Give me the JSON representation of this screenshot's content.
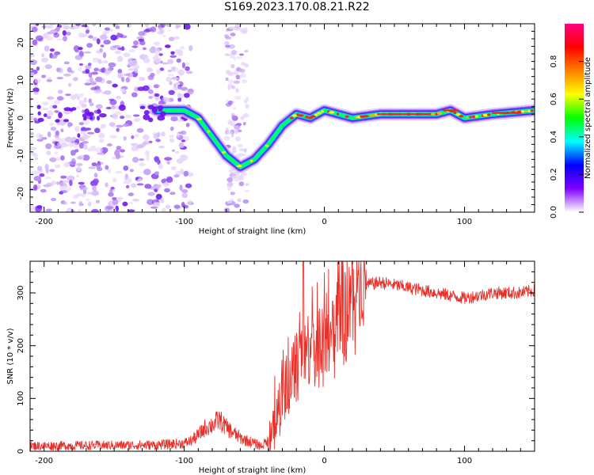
{
  "figure_title": "S169.2023.170.08.21.R22",
  "chart_data": [
    {
      "type": "heatmap",
      "title": "",
      "xlabel": "Height of straight line (km)",
      "ylabel": "Frequency (Hz)",
      "xlim": [
        -210,
        150
      ],
      "ylim": [
        -25,
        25
      ],
      "xticks": [
        -200,
        -100,
        0,
        100
      ],
      "yticks": [
        -20,
        -10,
        0,
        10,
        20
      ],
      "colorbar": {
        "label": "Normalized spectral amplitude",
        "range": [
          0,
          1
        ],
        "ticks": [
          "0.0",
          "0.2",
          "0.4",
          "0.6",
          "0.8"
        ],
        "colors": [
          "#ffffff",
          "#8000ff",
          "#0000ff",
          "#00ffff",
          "#00ff00",
          "#ffff00",
          "#ff8000",
          "#ff0000",
          "#ff0080"
        ]
      },
      "ridge": {
        "x": [
          -120,
          -110,
          -100,
          -90,
          -80,
          -70,
          -60,
          -50,
          -40,
          -30,
          -20,
          -10,
          0,
          10,
          20,
          40,
          60,
          80,
          90,
          100,
          120,
          150
        ],
        "y": [
          2,
          2,
          2,
          0,
          -5,
          -10,
          -13,
          -11,
          -7,
          -2,
          1,
          0,
          2,
          1,
          0,
          1,
          1,
          1,
          2,
          0,
          1,
          2
        ]
      },
      "noise_region_x": [
        -210,
        -105
      ],
      "secondary_noise_x": [
        -70,
        -55
      ]
    },
    {
      "type": "line",
      "title": "",
      "xlabel": "Height of straight line (km)",
      "ylabel": "SNR (10 * v/v)",
      "xlim": [
        -210,
        150
      ],
      "ylim": [
        0,
        360
      ],
      "xticks": [
        -200,
        -100,
        0,
        100
      ],
      "yticks": [
        0,
        100,
        200,
        300
      ],
      "color": "#e8302a",
      "envelope": {
        "x": [
          -210,
          -120,
          -100,
          -95,
          -90,
          -85,
          -80,
          -75,
          -70,
          -65,
          -60,
          -55,
          -50,
          -45,
          -40,
          -35,
          -30,
          -25,
          -20,
          -15,
          -10,
          -5,
          0,
          5,
          10,
          15,
          20,
          25,
          30,
          40,
          50,
          60,
          70,
          80,
          90,
          100,
          110,
          120,
          130,
          140,
          150
        ],
        "y": [
          10,
          12,
          15,
          20,
          30,
          45,
          50,
          60,
          45,
          35,
          25,
          20,
          15,
          10,
          20,
          70,
          110,
          140,
          170,
          190,
          200,
          210,
          215,
          230,
          250,
          270,
          290,
          305,
          315,
          320,
          315,
          310,
          305,
          300,
          295,
          290,
          295,
          300,
          300,
          300,
          305
        ]
      },
      "peak": {
        "x": -15,
        "y": 360
      }
    }
  ]
}
